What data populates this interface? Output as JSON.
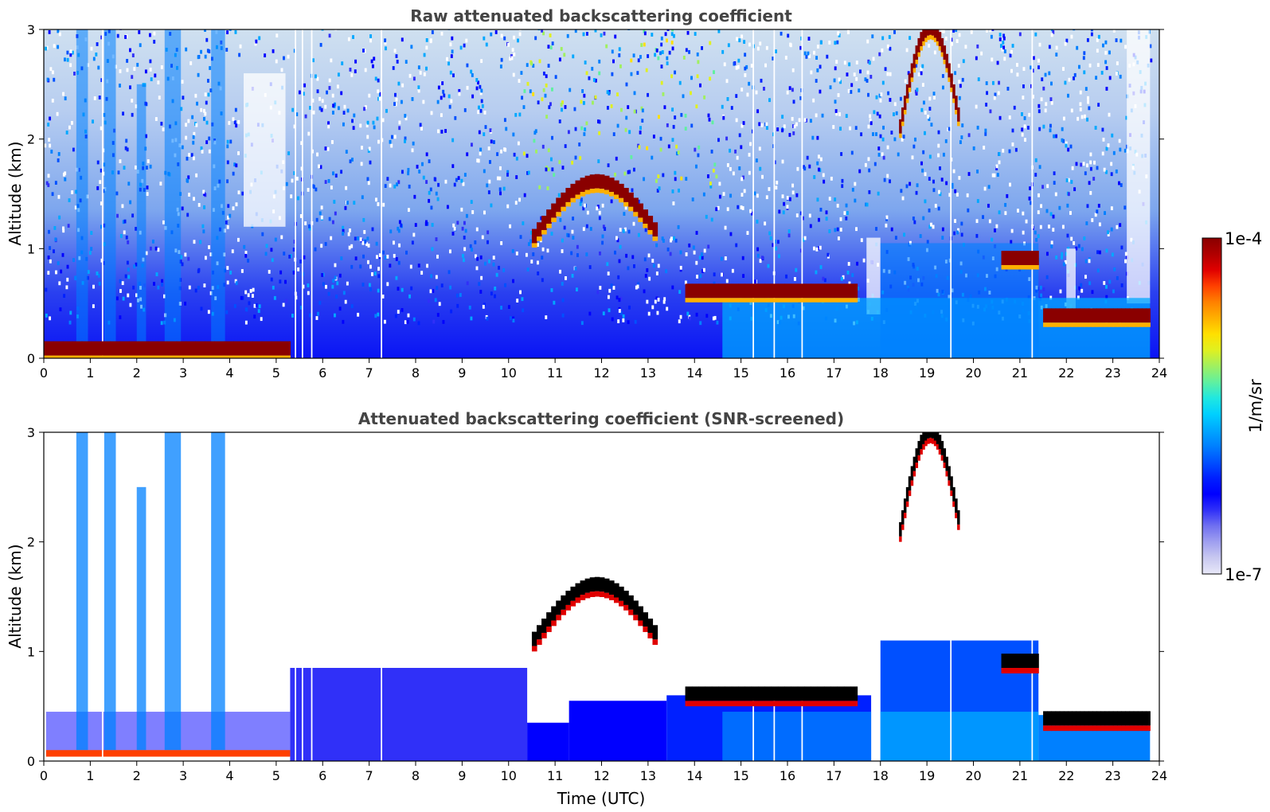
{
  "chart_data": [
    {
      "type": "heatmap",
      "title": "Raw attenuated backscattering coefficient",
      "xlabel": "",
      "ylabel": "Altitude (km)",
      "xlim": [
        0,
        24
      ],
      "ylim": [
        0,
        3
      ],
      "x_ticks": [
        "0",
        "1",
        "2",
        "3",
        "4",
        "5",
        "6",
        "7",
        "8",
        "9",
        "10",
        "11",
        "12",
        "13",
        "14",
        "15",
        "16",
        "17",
        "18",
        "19",
        "20",
        "21",
        "22",
        "23",
        "24"
      ],
      "y_ticks": [
        "0",
        "1",
        "2",
        "3"
      ],
      "log_color_scale": true,
      "features": [
        {
          "name": "surface layer",
          "x": [
            0,
            5.3
          ],
          "y": [
            0.05,
            0.1
          ],
          "level": 1.0
        },
        {
          "name": "cloud",
          "x": [
            10.5,
            13.2
          ],
          "y": [
            1.1,
            1.6
          ],
          "level": 1.0
        },
        {
          "name": "cloud",
          "x": [
            13.8,
            17.5
          ],
          "y": [
            0.4,
            0.8
          ],
          "level": 1.0
        },
        {
          "name": "cloud",
          "x": [
            18.4,
            19.7
          ],
          "y": [
            2.1,
            3.0
          ],
          "level": 1.0
        },
        {
          "name": "cloud",
          "x": [
            21.5,
            23.8
          ],
          "y": [
            0.3,
            0.45
          ],
          "level": 1.0
        },
        {
          "name": "cloud",
          "x": [
            20.6,
            21.4
          ],
          "y": [
            0.75,
            1.05
          ],
          "level": 1.0
        }
      ]
    },
    {
      "type": "heatmap",
      "title": "Attenuated backscattering coefficient (SNR-screened)",
      "xlabel": "Time (UTC)",
      "ylabel": "Altitude (km)",
      "xlim": [
        0,
        24
      ],
      "ylim": [
        0,
        3
      ],
      "x_ticks": [
        "0",
        "1",
        "2",
        "3",
        "4",
        "5",
        "6",
        "7",
        "8",
        "9",
        "10",
        "11",
        "12",
        "13",
        "14",
        "15",
        "16",
        "17",
        "18",
        "19",
        "20",
        "21",
        "22",
        "23",
        "24"
      ],
      "y_ticks": [
        "0",
        "1",
        "2",
        "3"
      ],
      "log_color_scale": true
    }
  ],
  "colorbar": {
    "label": "1/m/sr",
    "max_label": "1e-4",
    "min_label": "1e-7",
    "colors": [
      "#e8e8f8",
      "#c8c8f0",
      "#a0a0f0",
      "#7070f0",
      "#3030f8",
      "#0000ff",
      "#0020ff",
      "#0050ff",
      "#0080ff",
      "#00a8ff",
      "#00d0ff",
      "#20e8e0",
      "#60f0a0",
      "#a0f060",
      "#e0f020",
      "#ffe000",
      "#ffb000",
      "#ff8000",
      "#ff4000",
      "#e00000",
      "#b00000",
      "#8a0000"
    ]
  }
}
